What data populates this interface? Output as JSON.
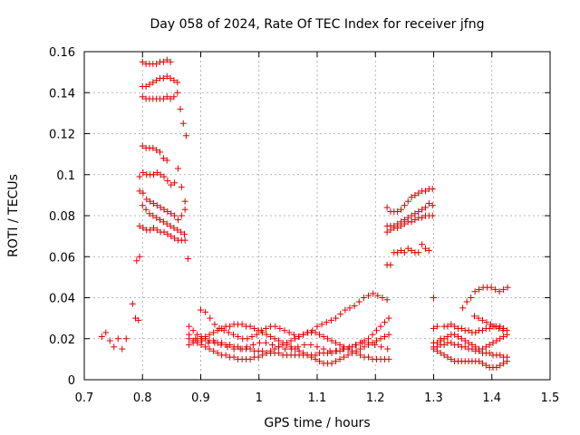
{
  "chart_data": {
    "type": "scatter",
    "title": "Day 058 of 2024, Rate Of TEC Index for receiver jfng",
    "xlabel": "GPS time / hours",
    "ylabel": "ROTI / TECUs",
    "xlim": [
      0.7,
      1.5
    ],
    "ylim": [
      0,
      0.16
    ],
    "grid": true,
    "marker": "+",
    "color": "#dd0000",
    "x_ticks": [
      {
        "value": 0.7,
        "label": "0.7"
      },
      {
        "value": 0.8,
        "label": "0.8"
      },
      {
        "value": 0.9,
        "label": "0.9"
      },
      {
        "value": 1.0,
        "label": "1"
      },
      {
        "value": 1.1,
        "label": "1.1"
      },
      {
        "value": 1.2,
        "label": "1.2"
      },
      {
        "value": 1.3,
        "label": "1.3"
      },
      {
        "value": 1.4,
        "label": "1.4"
      },
      {
        "value": 1.5,
        "label": "1.5"
      }
    ],
    "y_ticks": [
      {
        "value": 0,
        "label": "0"
      },
      {
        "value": 0.02,
        "label": "0.02"
      },
      {
        "value": 0.04,
        "label": "0.04"
      },
      {
        "value": 0.06,
        "label": "0.06"
      },
      {
        "value": 0.08,
        "label": "0.08"
      },
      {
        "value": 0.1,
        "label": "0.1"
      },
      {
        "value": 0.12,
        "label": "0.12"
      },
      {
        "value": 0.14,
        "label": "0.14"
      },
      {
        "value": 0.16,
        "label": "0.16"
      }
    ],
    "segments": [
      {
        "x_start": 0.73,
        "x_end": 0.775,
        "step": 0.007,
        "y": [
          0.021,
          0.023,
          0.019,
          0.016,
          0.02,
          0.015,
          0.02
        ]
      },
      {
        "x_start": 0.783,
        "x_end": 0.796,
        "step": 0.005,
        "y": [
          0.037,
          0.03,
          0.029
        ]
      },
      {
        "x_start": 0.79,
        "x_end": 0.797,
        "step": 0.005,
        "y": [
          0.058,
          0.06
        ]
      },
      {
        "x_start": 0.8,
        "x_end": 0.855,
        "step": 0.006,
        "y": [
          0.155,
          0.154,
          0.154,
          0.154,
          0.154,
          0.155,
          0.155,
          0.156,
          0.155
        ]
      },
      {
        "x_start": 0.8,
        "x_end": 0.865,
        "step": 0.006,
        "y": [
          0.143,
          0.143,
          0.144,
          0.145,
          0.146,
          0.147,
          0.147,
          0.148,
          0.147,
          0.146,
          0.145
        ]
      },
      {
        "x_start": 0.8,
        "x_end": 0.865,
        "step": 0.006,
        "y": [
          0.138,
          0.137,
          0.137,
          0.137,
          0.137,
          0.137,
          0.137,
          0.138,
          0.137,
          0.138,
          0.14
        ]
      },
      {
        "x_start": 0.865,
        "x_end": 0.877,
        "step": 0.005,
        "y": [
          0.132,
          0.125,
          0.119,
          0.113
        ]
      },
      {
        "x_start": 0.8,
        "x_end": 0.845,
        "step": 0.006,
        "y": [
          0.114,
          0.113,
          0.113,
          0.113,
          0.112,
          0.111,
          0.108,
          0.107
        ]
      },
      {
        "x_start": 0.795,
        "x_end": 0.877,
        "step": 0.006,
        "y": [
          0.099,
          0.101,
          0.1,
          0.1,
          0.1,
          0.101,
          0.1,
          0.099,
          0.097,
          0.095,
          0.096,
          0.103,
          0.094,
          0.087
        ]
      },
      {
        "x_start": 0.795,
        "x_end": 0.877,
        "step": 0.006,
        "y": [
          0.092,
          0.091,
          0.088,
          0.087,
          0.086,
          0.085,
          0.084,
          0.083,
          0.082,
          0.081,
          0.08,
          0.078,
          0.08,
          0.083
        ]
      },
      {
        "x_start": 0.8,
        "x_end": 0.877,
        "step": 0.006,
        "y": [
          0.085,
          0.083,
          0.081,
          0.08,
          0.079,
          0.078,
          0.077,
          0.076,
          0.075,
          0.074,
          0.073,
          0.072,
          0.071,
          0.07
        ]
      },
      {
        "x_start": 0.795,
        "x_end": 0.877,
        "step": 0.006,
        "y": [
          0.075,
          0.074,
          0.073,
          0.073,
          0.074,
          0.073,
          0.072,
          0.072,
          0.071,
          0.07,
          0.069,
          0.068,
          0.068,
          0.068
        ]
      },
      {
        "x_start": 0.878,
        "x_end": 0.882,
        "step": 0.004,
        "y": [
          0.059
        ]
      },
      {
        "x_start": 0.88,
        "x_end": 1.225,
        "step": 0.007,
        "y": [
          0.026,
          0.024,
          0.022,
          0.021,
          0.02,
          0.019,
          0.019,
          0.018,
          0.018,
          0.017,
          0.017,
          0.016,
          0.016,
          0.015,
          0.015,
          0.015,
          0.014,
          0.014,
          0.014,
          0.013,
          0.013,
          0.013,
          0.013,
          0.012,
          0.012,
          0.012,
          0.012,
          0.012,
          0.012,
          0.012,
          0.012,
          0.012,
          0.013,
          0.013,
          0.013,
          0.013,
          0.014,
          0.014,
          0.015,
          0.015,
          0.016,
          0.017,
          0.018,
          0.019,
          0.02,
          0.022,
          0.024,
          0.026,
          0.028,
          0.03
        ]
      },
      {
        "x_start": 0.88,
        "x_end": 1.225,
        "step": 0.007,
        "y": [
          0.02,
          0.019,
          0.018,
          0.017,
          0.016,
          0.015,
          0.014,
          0.013,
          0.012,
          0.012,
          0.011,
          0.011,
          0.01,
          0.01,
          0.01,
          0.01,
          0.011,
          0.011,
          0.012,
          0.013,
          0.014,
          0.015,
          0.016,
          0.017,
          0.018,
          0.019,
          0.02,
          0.021,
          0.022,
          0.023,
          0.023,
          0.023,
          0.022,
          0.021,
          0.02,
          0.019,
          0.018,
          0.017,
          0.016,
          0.015,
          0.014,
          0.013,
          0.012,
          0.011,
          0.011,
          0.01,
          0.01,
          0.01,
          0.01,
          0.01
        ]
      },
      {
        "x_start": 0.88,
        "x_end": 1.225,
        "step": 0.007,
        "y": [
          0.017,
          0.018,
          0.019,
          0.02,
          0.021,
          0.022,
          0.023,
          0.024,
          0.025,
          0.026,
          0.026,
          0.027,
          0.027,
          0.027,
          0.026,
          0.026,
          0.025,
          0.024,
          0.023,
          0.022,
          0.021,
          0.02,
          0.019,
          0.018,
          0.017,
          0.016,
          0.015,
          0.014,
          0.013,
          0.012,
          0.011,
          0.01,
          0.009,
          0.008,
          0.008,
          0.008,
          0.009,
          0.01,
          0.011,
          0.012,
          0.013,
          0.014,
          0.015,
          0.016,
          0.017,
          0.018,
          0.019,
          0.02,
          0.021,
          0.022
        ]
      },
      {
        "x_start": 0.9,
        "x_end": 1.225,
        "step": 0.008,
        "y": [
          0.034,
          0.033,
          0.03,
          0.027,
          0.025,
          0.024,
          0.023,
          0.022,
          0.021,
          0.02,
          0.02,
          0.021,
          0.022,
          0.024,
          0.025,
          0.026,
          0.026,
          0.025,
          0.024,
          0.023,
          0.022,
          0.021,
          0.022,
          0.023,
          0.024,
          0.026,
          0.027,
          0.028,
          0.029,
          0.03,
          0.032,
          0.034,
          0.035,
          0.036,
          0.038,
          0.04,
          0.041,
          0.042,
          0.041,
          0.04,
          0.039
        ]
      },
      {
        "x_start": 0.88,
        "x_end": 1.225,
        "step": 0.011,
        "y": [
          0.022,
          0.02,
          0.019,
          0.018,
          0.018,
          0.017,
          0.016,
          0.015,
          0.015,
          0.016,
          0.017,
          0.018,
          0.018,
          0.017,
          0.016,
          0.015,
          0.015,
          0.016,
          0.017,
          0.017,
          0.016,
          0.015,
          0.014,
          0.014,
          0.015,
          0.016,
          0.017,
          0.018,
          0.018,
          0.017,
          0.016,
          0.015
        ]
      },
      {
        "x_start": 1.22,
        "x_end": 1.3,
        "step": 0.006,
        "y": [
          0.084,
          0.082,
          0.082,
          0.082,
          0.083,
          0.085,
          0.087,
          0.089,
          0.09,
          0.091,
          0.092,
          0.092,
          0.093,
          0.093
        ]
      },
      {
        "x_start": 1.22,
        "x_end": 1.3,
        "step": 0.006,
        "y": [
          0.075,
          0.075,
          0.075,
          0.076,
          0.077,
          0.078,
          0.079,
          0.08,
          0.081,
          0.082,
          0.083,
          0.084,
          0.086,
          0.085
        ]
      },
      {
        "x_start": 1.22,
        "x_end": 1.3,
        "step": 0.006,
        "y": [
          0.072,
          0.073,
          0.074,
          0.074,
          0.075,
          0.076,
          0.077,
          0.077,
          0.078,
          0.079,
          0.079,
          0.08,
          0.08,
          0.08
        ]
      },
      {
        "x_start": 1.22,
        "x_end": 1.3,
        "step": 0.006,
        "y": [
          0.056,
          0.056,
          0.062,
          0.062,
          0.063,
          0.062,
          0.064,
          0.063,
          0.062,
          0.062,
          0.066,
          0.064,
          0.063
        ]
      },
      {
        "x_start": 1.3,
        "x_end": 1.305,
        "step": 0.005,
        "y": [
          0.04
        ]
      },
      {
        "x_start": 1.3,
        "x_end": 1.43,
        "step": 0.006,
        "y": [
          0.025,
          0.026,
          0.02,
          0.026,
          0.026,
          0.027,
          0.026,
          0.025,
          0.025,
          0.024,
          0.024,
          0.023,
          0.023,
          0.024,
          0.024,
          0.025,
          0.025,
          0.026,
          0.026,
          0.026,
          0.025,
          0.024,
          0.024
        ]
      },
      {
        "x_start": 1.3,
        "x_end": 1.43,
        "step": 0.006,
        "y": [
          0.018,
          0.018,
          0.019,
          0.02,
          0.021,
          0.022,
          0.022,
          0.021,
          0.02,
          0.019,
          0.018,
          0.017,
          0.016,
          0.015,
          0.015,
          0.016,
          0.017,
          0.018,
          0.019,
          0.02,
          0.021,
          0.022,
          0.023
        ]
      },
      {
        "x_start": 1.3,
        "x_end": 1.43,
        "step": 0.006,
        "y": [
          0.015,
          0.014,
          0.013,
          0.012,
          0.011,
          0.01,
          0.009,
          0.009,
          0.009,
          0.009,
          0.009,
          0.009,
          0.009,
          0.009,
          0.008,
          0.007,
          0.006,
          0.006,
          0.006,
          0.007,
          0.008,
          0.009,
          0.01
        ]
      },
      {
        "x_start": 1.3,
        "x_end": 1.43,
        "step": 0.006,
        "y": [
          0.016,
          0.016,
          0.017,
          0.017,
          0.018,
          0.018,
          0.017,
          0.017,
          0.016,
          0.016,
          0.015,
          0.015,
          0.014,
          0.014,
          0.013,
          0.013,
          0.013,
          0.012,
          0.012,
          0.012,
          0.011,
          0.011,
          0.011
        ]
      },
      {
        "x_start": 1.35,
        "x_end": 1.43,
        "step": 0.007,
        "y": [
          0.035,
          0.038,
          0.04,
          0.043,
          0.044,
          0.045,
          0.045,
          0.045,
          0.044,
          0.043,
          0.044,
          0.045
        ]
      },
      {
        "x_start": 1.37,
        "x_end": 1.42,
        "step": 0.007,
        "y": [
          0.031,
          0.03,
          0.029,
          0.028,
          0.027,
          0.026,
          0.025,
          0.024
        ]
      }
    ]
  }
}
